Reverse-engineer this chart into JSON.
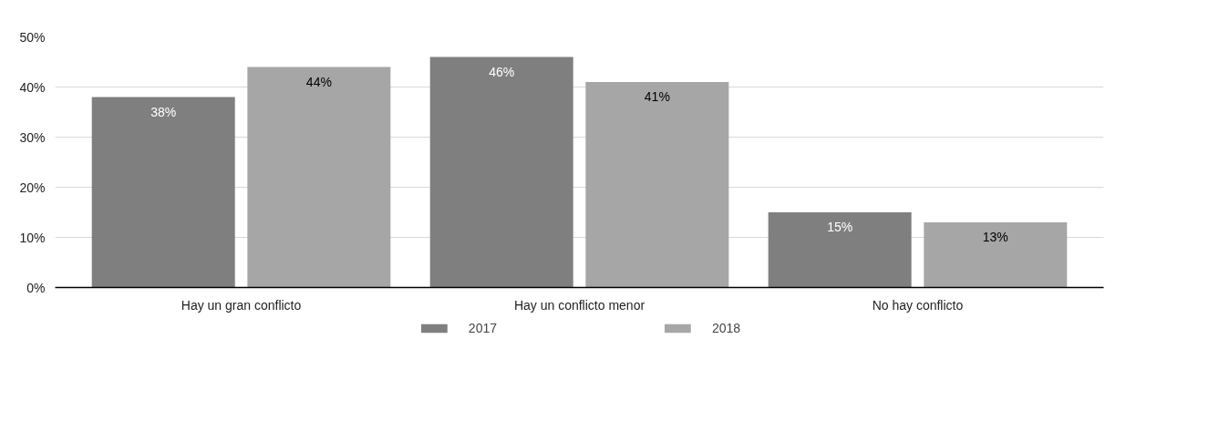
{
  "chart_data": {
    "type": "bar",
    "categories": [
      "Hay un gran conflicto",
      "Hay un conflicto menor",
      "No hay conflicto"
    ],
    "series": [
      {
        "name": "2017",
        "color": "#7f7f7f",
        "values": [
          38,
          46,
          15
        ],
        "value_labels": [
          "38%",
          "46%",
          "15%"
        ]
      },
      {
        "name": "2018",
        "color": "#a6a6a6",
        "values": [
          44,
          41,
          13
        ],
        "value_labels": [
          "44%",
          "41%",
          "13%"
        ]
      }
    ],
    "ylim": [
      0,
      50
    ],
    "yticks": [
      {
        "value": 0,
        "label": "0%"
      },
      {
        "value": 10,
        "label": "10%"
      },
      {
        "value": 20,
        "label": "20%"
      },
      {
        "value": 30,
        "label": "30%"
      },
      {
        "value": 40,
        "label": "40%"
      },
      {
        "value": 50,
        "label": "50%"
      }
    ],
    "grid": "y",
    "legend": "bottom"
  }
}
